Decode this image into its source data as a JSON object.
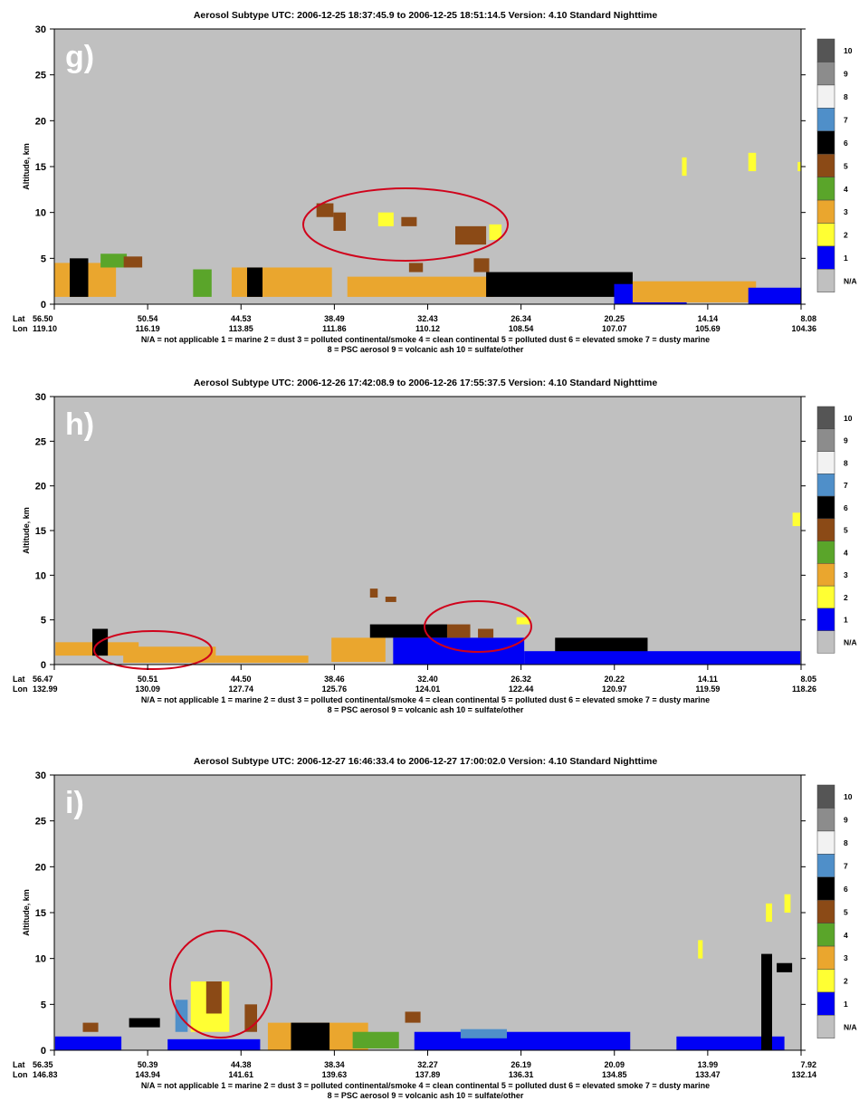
{
  "legend_colors": [
    {
      "code": "N/A",
      "color": "#c0c0c0"
    },
    {
      "code": "1",
      "color": "#0000f5"
    },
    {
      "code": "2",
      "color": "#ffff33"
    },
    {
      "code": "3",
      "color": "#eaa62e"
    },
    {
      "code": "4",
      "color": "#5aa52a"
    },
    {
      "code": "5",
      "color": "#8b4a16"
    },
    {
      "code": "6",
      "color": "#000000"
    },
    {
      "code": "7",
      "color": "#4f8fc9"
    },
    {
      "code": "8",
      "color": "#f2f2f2"
    },
    {
      "code": "9",
      "color": "#8c8c8c"
    },
    {
      "code": "10",
      "color": "#555555"
    }
  ],
  "legend_line1": "N/A = not applicable    1 = marine    2 = dust    3 = polluted continental/smoke    4 = clean continental    5 = polluted dust    6 = elevated smoke    7 = dusty marine",
  "legend_line2": "8 = PSC aerosol    9 = volcanic ash    10 = sulfate/other",
  "colors": {
    "background": "#c0c0c0",
    "highlight": "#d0021b"
  },
  "chart_data": [
    {
      "type": "heatmap",
      "panel_label": "g)",
      "title": "Aerosol Subtype    UTC:  2006-12-25    18:37:45.9  to  2006-12-25    18:51:14.5    Version: 4.10  Standard Nighttime",
      "ylabel": "Altitude, km",
      "ylim": [
        0,
        30
      ],
      "yticks": [
        0,
        5,
        10,
        15,
        20,
        25,
        30
      ],
      "lat_label": "Lat",
      "lon_label": "Lon",
      "lat": [
        "56.50",
        "50.54",
        "44.53",
        "38.49",
        "32.43",
        "26.34",
        "20.25",
        "14.14",
        "8.08"
      ],
      "lon": [
        "119.10",
        "116.19",
        "113.85",
        "111.86",
        "110.12",
        "108.54",
        "107.07",
        "105.69",
        "104.36"
      ],
      "features": [
        {
          "lat_from": 56.5,
          "lat_to": 52.5,
          "alt_from": 0.8,
          "alt_to": 4.5,
          "subtype": "3"
        },
        {
          "lat_from": 55.5,
          "lat_to": 54.3,
          "alt_from": 0.8,
          "alt_to": 5,
          "subtype": "6"
        },
        {
          "lat_from": 53.5,
          "lat_to": 51.8,
          "alt_from": 4,
          "alt_to": 5.5,
          "subtype": "4"
        },
        {
          "lat_from": 52,
          "lat_to": 50.8,
          "alt_from": 4,
          "alt_to": 5.2,
          "subtype": "5"
        },
        {
          "lat_from": 47.5,
          "lat_to": 46.3,
          "alt_from": 0.8,
          "alt_to": 3.8,
          "subtype": "4"
        },
        {
          "lat_from": 45,
          "lat_to": 38.5,
          "alt_from": 0.8,
          "alt_to": 4,
          "subtype": "3"
        },
        {
          "lat_from": 44,
          "lat_to": 43,
          "alt_from": 0.8,
          "alt_to": 4,
          "subtype": "6"
        },
        {
          "lat_from": 37.5,
          "lat_to": 28,
          "alt_from": 0.8,
          "alt_to": 3,
          "subtype": "3"
        },
        {
          "lat_from": 33.5,
          "lat_to": 32.6,
          "alt_from": 3.5,
          "alt_to": 4.5,
          "subtype": "5"
        },
        {
          "lat_from": 29.3,
          "lat_to": 28.3,
          "alt_from": 3.5,
          "alt_to": 5,
          "subtype": "5"
        },
        {
          "lat_from": 28.5,
          "lat_to": 19,
          "alt_from": 0.8,
          "alt_to": 3.5,
          "subtype": "6"
        },
        {
          "lat_from": 20.2,
          "lat_to": 15.5,
          "alt_from": 0,
          "alt_to": 2.2,
          "subtype": "1"
        },
        {
          "lat_from": 19,
          "lat_to": 11,
          "alt_from": 0.2,
          "alt_to": 2.5,
          "subtype": "3"
        },
        {
          "lat_from": 11.5,
          "lat_to": 8.1,
          "alt_from": 0,
          "alt_to": 1.8,
          "subtype": "1"
        },
        {
          "lat_from": 39.5,
          "lat_to": 38.4,
          "alt_from": 9.5,
          "alt_to": 11,
          "subtype": "5"
        },
        {
          "lat_from": 38.4,
          "lat_to": 37.6,
          "alt_from": 8,
          "alt_to": 10,
          "subtype": "5"
        },
        {
          "lat_from": 35.5,
          "lat_to": 34.5,
          "alt_from": 8.5,
          "alt_to": 10,
          "subtype": "2"
        },
        {
          "lat_from": 34,
          "lat_to": 33,
          "alt_from": 8.5,
          "alt_to": 9.5,
          "subtype": "5"
        },
        {
          "lat_from": 30.5,
          "lat_to": 28.5,
          "alt_from": 6.5,
          "alt_to": 8.5,
          "subtype": "5"
        },
        {
          "lat_from": 28.3,
          "lat_to": 27.5,
          "alt_from": 7,
          "alt_to": 8.7,
          "subtype": "2"
        },
        {
          "lat_from": 15.8,
          "lat_to": 15.5,
          "alt_from": 14,
          "alt_to": 16,
          "subtype": "2"
        },
        {
          "lat_from": 11.5,
          "lat_to": 11,
          "alt_from": 14.5,
          "alt_to": 16.5,
          "subtype": "2"
        },
        {
          "lat_from": 8.3,
          "lat_to": 8.1,
          "alt_from": 14.5,
          "alt_to": 15.5,
          "subtype": "2"
        }
      ]
    },
    {
      "type": "heatmap",
      "panel_label": "h)",
      "title": "Aerosol Subtype    UTC:  2006-12-26   17:42:08.9  to  2006-12-26   17:55:37.5    Version: 4.10  Standard Nighttime",
      "ylabel": "Altitude, km",
      "ylim": [
        0,
        30
      ],
      "yticks": [
        0,
        5,
        10,
        15,
        20,
        25,
        30
      ],
      "lat_label": "Lat",
      "lon_label": "Lon",
      "lat": [
        "56.47",
        "50.51",
        "44.50",
        "38.46",
        "32.40",
        "26.32",
        "20.22",
        "14.11",
        "8.05"
      ],
      "lon": [
        "132.99",
        "130.09",
        "127.74",
        "125.76",
        "124.01",
        "122.44",
        "120.97",
        "119.59",
        "118.26"
      ],
      "features": [
        {
          "lat_from": 56.4,
          "lat_to": 51,
          "alt_from": 1,
          "alt_to": 2.5,
          "subtype": "3"
        },
        {
          "lat_from": 54,
          "lat_to": 53,
          "alt_from": 1,
          "alt_to": 4,
          "subtype": "6"
        },
        {
          "lat_from": 52,
          "lat_to": 46,
          "alt_from": 0.2,
          "alt_to": 2,
          "subtype": "3"
        },
        {
          "lat_from": 46,
          "lat_to": 40,
          "alt_from": 0.2,
          "alt_to": 1,
          "subtype": "3"
        },
        {
          "lat_from": 38.5,
          "lat_to": 35,
          "alt_from": 0.3,
          "alt_to": 3,
          "subtype": "3"
        },
        {
          "lat_from": 36,
          "lat_to": 31,
          "alt_from": 3,
          "alt_to": 4.5,
          "subtype": "6"
        },
        {
          "lat_from": 34.5,
          "lat_to": 26,
          "alt_from": 0,
          "alt_to": 3,
          "subtype": "1"
        },
        {
          "lat_from": 31,
          "lat_to": 29.5,
          "alt_from": 3,
          "alt_to": 4.5,
          "subtype": "5"
        },
        {
          "lat_from": 29,
          "lat_to": 28,
          "alt_from": 3,
          "alt_to": 4,
          "subtype": "5"
        },
        {
          "lat_from": 26.5,
          "lat_to": 25.6,
          "alt_from": 4.5,
          "alt_to": 5.3,
          "subtype": "2"
        },
        {
          "lat_from": 24,
          "lat_to": 18,
          "alt_from": 0,
          "alt_to": 3,
          "subtype": "6"
        },
        {
          "lat_from": 26,
          "lat_to": 8.1,
          "alt_from": 0,
          "alt_to": 1.5,
          "subtype": "1"
        },
        {
          "lat_from": 36,
          "lat_to": 35.5,
          "alt_from": 7.5,
          "alt_to": 8.5,
          "subtype": "5"
        },
        {
          "lat_from": 35,
          "lat_to": 34.3,
          "alt_from": 7,
          "alt_to": 7.6,
          "subtype": "5"
        },
        {
          "lat_from": 8.6,
          "lat_to": 8.1,
          "alt_from": 15.5,
          "alt_to": 17,
          "subtype": "2"
        }
      ]
    },
    {
      "type": "heatmap",
      "panel_label": "i)",
      "title": "Aerosol Subtype    UTC:  2006-12-27   16:46:33.4  to  2006-12-27   17:00:02.0    Version: 4.10  Standard Nighttime",
      "ylabel": "Altitude, km",
      "ylim": [
        0,
        30
      ],
      "yticks": [
        0,
        5,
        10,
        15,
        20,
        25,
        30
      ],
      "lat_label": "Lat",
      "lon_label": "Lon",
      "lat": [
        "56.35",
        "50.39",
        "44.38",
        "38.34",
        "32.27",
        "26.19",
        "20.09",
        "13.99",
        "7.92"
      ],
      "lon": [
        "146.83",
        "143.94",
        "141.61",
        "139.63",
        "137.89",
        "136.31",
        "134.85",
        "133.47",
        "132.14"
      ],
      "features": [
        {
          "lat_from": 56.3,
          "lat_to": 52,
          "alt_from": 0,
          "alt_to": 1.5,
          "subtype": "1"
        },
        {
          "lat_from": 54.5,
          "lat_to": 53.5,
          "alt_from": 2,
          "alt_to": 3,
          "subtype": "5"
        },
        {
          "lat_from": 51.5,
          "lat_to": 49.5,
          "alt_from": 2.5,
          "alt_to": 3.5,
          "subtype": "6"
        },
        {
          "lat_from": 49,
          "lat_to": 43,
          "alt_from": 0,
          "alt_to": 1.2,
          "subtype": "1"
        },
        {
          "lat_from": 48.5,
          "lat_to": 47.7,
          "alt_from": 2,
          "alt_to": 5.5,
          "subtype": "7"
        },
        {
          "lat_from": 47.5,
          "lat_to": 45,
          "alt_from": 2,
          "alt_to": 7.5,
          "subtype": "2"
        },
        {
          "lat_from": 46.5,
          "lat_to": 45.5,
          "alt_from": 4,
          "alt_to": 7.5,
          "subtype": "5"
        },
        {
          "lat_from": 44,
          "lat_to": 43.2,
          "alt_from": 2,
          "alt_to": 5,
          "subtype": "5"
        },
        {
          "lat_from": 42.5,
          "lat_to": 36,
          "alt_from": 0,
          "alt_to": 3,
          "subtype": "3"
        },
        {
          "lat_from": 41,
          "lat_to": 38.5,
          "alt_from": 0,
          "alt_to": 3,
          "subtype": "6"
        },
        {
          "lat_from": 37,
          "lat_to": 34,
          "alt_from": 0.2,
          "alt_to": 2,
          "subtype": "4"
        },
        {
          "lat_from": 33.6,
          "lat_to": 32.6,
          "alt_from": 3,
          "alt_to": 4.2,
          "subtype": "5"
        },
        {
          "lat_from": 33,
          "lat_to": 19,
          "alt_from": 0,
          "alt_to": 2,
          "subtype": "1"
        },
        {
          "lat_from": 30,
          "lat_to": 27,
          "alt_from": 1.3,
          "alt_to": 2.3,
          "subtype": "7"
        },
        {
          "lat_from": 16,
          "lat_to": 9,
          "alt_from": 0,
          "alt_to": 1.5,
          "subtype": "1"
        },
        {
          "lat_from": 10.5,
          "lat_to": 9.8,
          "alt_from": 0,
          "alt_to": 10.5,
          "subtype": "6"
        },
        {
          "lat_from": 9.5,
          "lat_to": 8.5,
          "alt_from": 8.5,
          "alt_to": 9.5,
          "subtype": "6"
        },
        {
          "lat_from": 14.6,
          "lat_to": 14.3,
          "alt_from": 10,
          "alt_to": 12,
          "subtype": "2"
        },
        {
          "lat_from": 10.2,
          "lat_to": 9.8,
          "alt_from": 14,
          "alt_to": 16,
          "subtype": "2"
        },
        {
          "lat_from": 9,
          "lat_to": 8.6,
          "alt_from": 15,
          "alt_to": 17,
          "subtype": "2"
        }
      ]
    }
  ]
}
